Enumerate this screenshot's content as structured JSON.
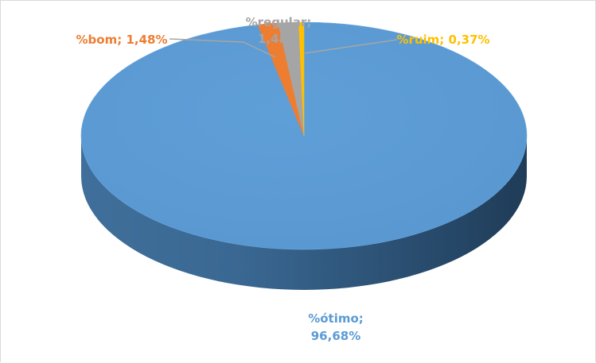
{
  "chart_data": {
    "type": "pie",
    "style": "3d",
    "title": "",
    "legend": "none",
    "slices": [
      {
        "name": "%ótimo",
        "value": 96.68,
        "label_line1": "%ótimo;",
        "label_line2": "96,68%",
        "color": "#5B9BD5"
      },
      {
        "name": "%bom",
        "value": 1.48,
        "label_line1": "%bom; 1,48%",
        "label_line2": "",
        "color": "#ED7D31"
      },
      {
        "name": "%regular",
        "value": 1.48,
        "label_line1": "%regular;",
        "label_line2": "1,48%",
        "color": "#A5A5A5"
      },
      {
        "name": "%ruim",
        "value": 0.37,
        "label_line1": "%ruim; 0,37%",
        "label_line2": "",
        "color": "#FFC000"
      }
    ]
  }
}
